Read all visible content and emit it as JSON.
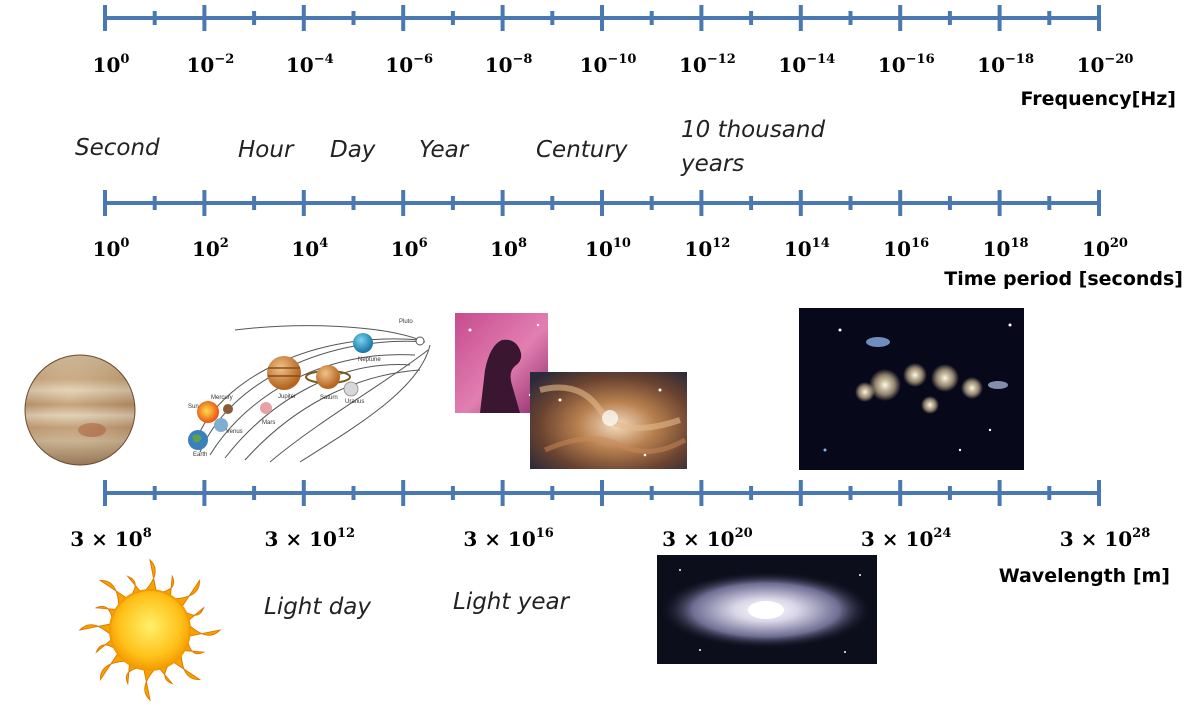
{
  "frequency_axis": {
    "title": "Frequency[Hz]",
    "major_ticks": 11,
    "minor_per_interval": 1,
    "labels": [
      {
        "base": "10",
        "exp": "0"
      },
      {
        "base": "10",
        "exp": "−2"
      },
      {
        "base": "10",
        "exp": "−4"
      },
      {
        "base": "10",
        "exp": "−6"
      },
      {
        "base": "10",
        "exp": "−8"
      },
      {
        "base": "10",
        "exp": "−10"
      },
      {
        "base": "10",
        "exp": "−12"
      },
      {
        "base": "10",
        "exp": "−14"
      },
      {
        "base": "10",
        "exp": "−16"
      },
      {
        "base": "10",
        "exp": "−18"
      },
      {
        "base": "10",
        "exp": "−20"
      }
    ]
  },
  "time_axis": {
    "title": "Time period [seconds]",
    "major_ticks": 11,
    "minor_per_interval": 1,
    "labels": [
      {
        "base": "10",
        "exp": "0"
      },
      {
        "base": "10",
        "exp": "2"
      },
      {
        "base": "10",
        "exp": "4"
      },
      {
        "base": "10",
        "exp": "6"
      },
      {
        "base": "10",
        "exp": "8"
      },
      {
        "base": "10",
        "exp": "10"
      },
      {
        "base": "10",
        "exp": "12"
      },
      {
        "base": "10",
        "exp": "14"
      },
      {
        "base": "10",
        "exp": "16"
      },
      {
        "base": "10",
        "exp": "18"
      },
      {
        "base": "10",
        "exp": "20"
      }
    ],
    "annotations": [
      "Second",
      "Hour",
      "Day",
      "Year",
      "Century",
      "10 thousand",
      "years"
    ]
  },
  "wavelength_axis": {
    "title": "Wavelength [m]",
    "major_ticks": 11,
    "minor_per_interval": 1,
    "labels": [
      {
        "base": "3 × 10",
        "exp": "8"
      },
      {
        "base": "3 × 10",
        "exp": "12"
      },
      {
        "base": "3 × 10",
        "exp": "16"
      },
      {
        "base": "3 × 10",
        "exp": "20"
      },
      {
        "base": "3 × 10",
        "exp": "24"
      },
      {
        "base": "3 × 10",
        "exp": "28"
      }
    ],
    "annotations": [
      "Light day",
      "Light year"
    ]
  },
  "solar_system": {
    "planet_labels": [
      "Mercury",
      "Sun",
      "Venus",
      "Earth",
      "Mars",
      "Jupiter",
      "Saturn",
      "Uranus",
      "Neptune",
      "Pluto"
    ]
  },
  "colors": {
    "axis": "#4a78b0"
  }
}
